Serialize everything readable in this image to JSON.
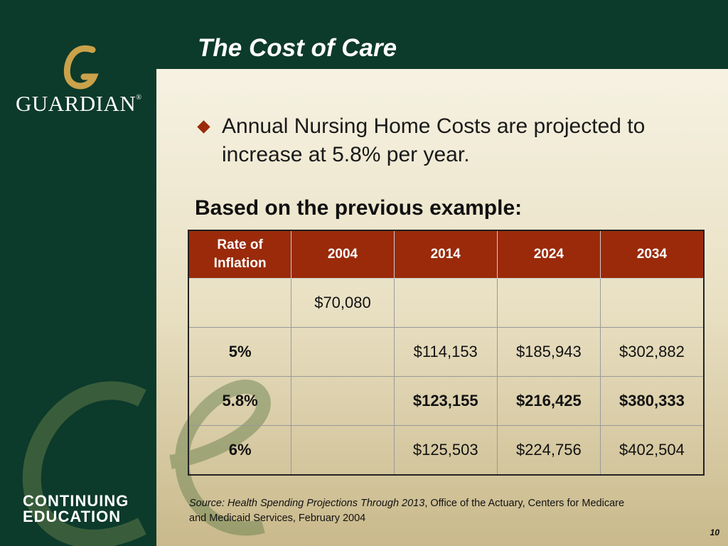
{
  "header": {
    "title": "The Cost of Care",
    "logo": "GUARDIAN",
    "logo_mark": "®",
    "program": [
      "CONTINUING",
      "EDUCATION"
    ]
  },
  "bullet": "Annual Nursing Home Costs are projected to increase at 5.8% per year.",
  "subheading": "Based on the previous example:",
  "table": {
    "header": [
      "Rate of Inflation",
      "2004",
      "2014",
      "2024",
      "2034"
    ],
    "rows": [
      [
        null,
        "$70,080",
        null,
        null,
        null
      ],
      [
        "5%",
        null,
        "$114,153",
        "$185,943",
        "$302,882"
      ],
      [
        "5.8%",
        null,
        "$123,155",
        "$216,425",
        "$380,333"
      ],
      [
        "6%",
        null,
        "$125,503",
        "$224,756",
        "$402,504"
      ]
    ]
  },
  "source": {
    "italic": "Source: Health Spending Projections Through 2013",
    "text": ", Office of the Actuary, Centers for Medicare and Medicaid Services, February 2004"
  },
  "page_number": "10"
}
